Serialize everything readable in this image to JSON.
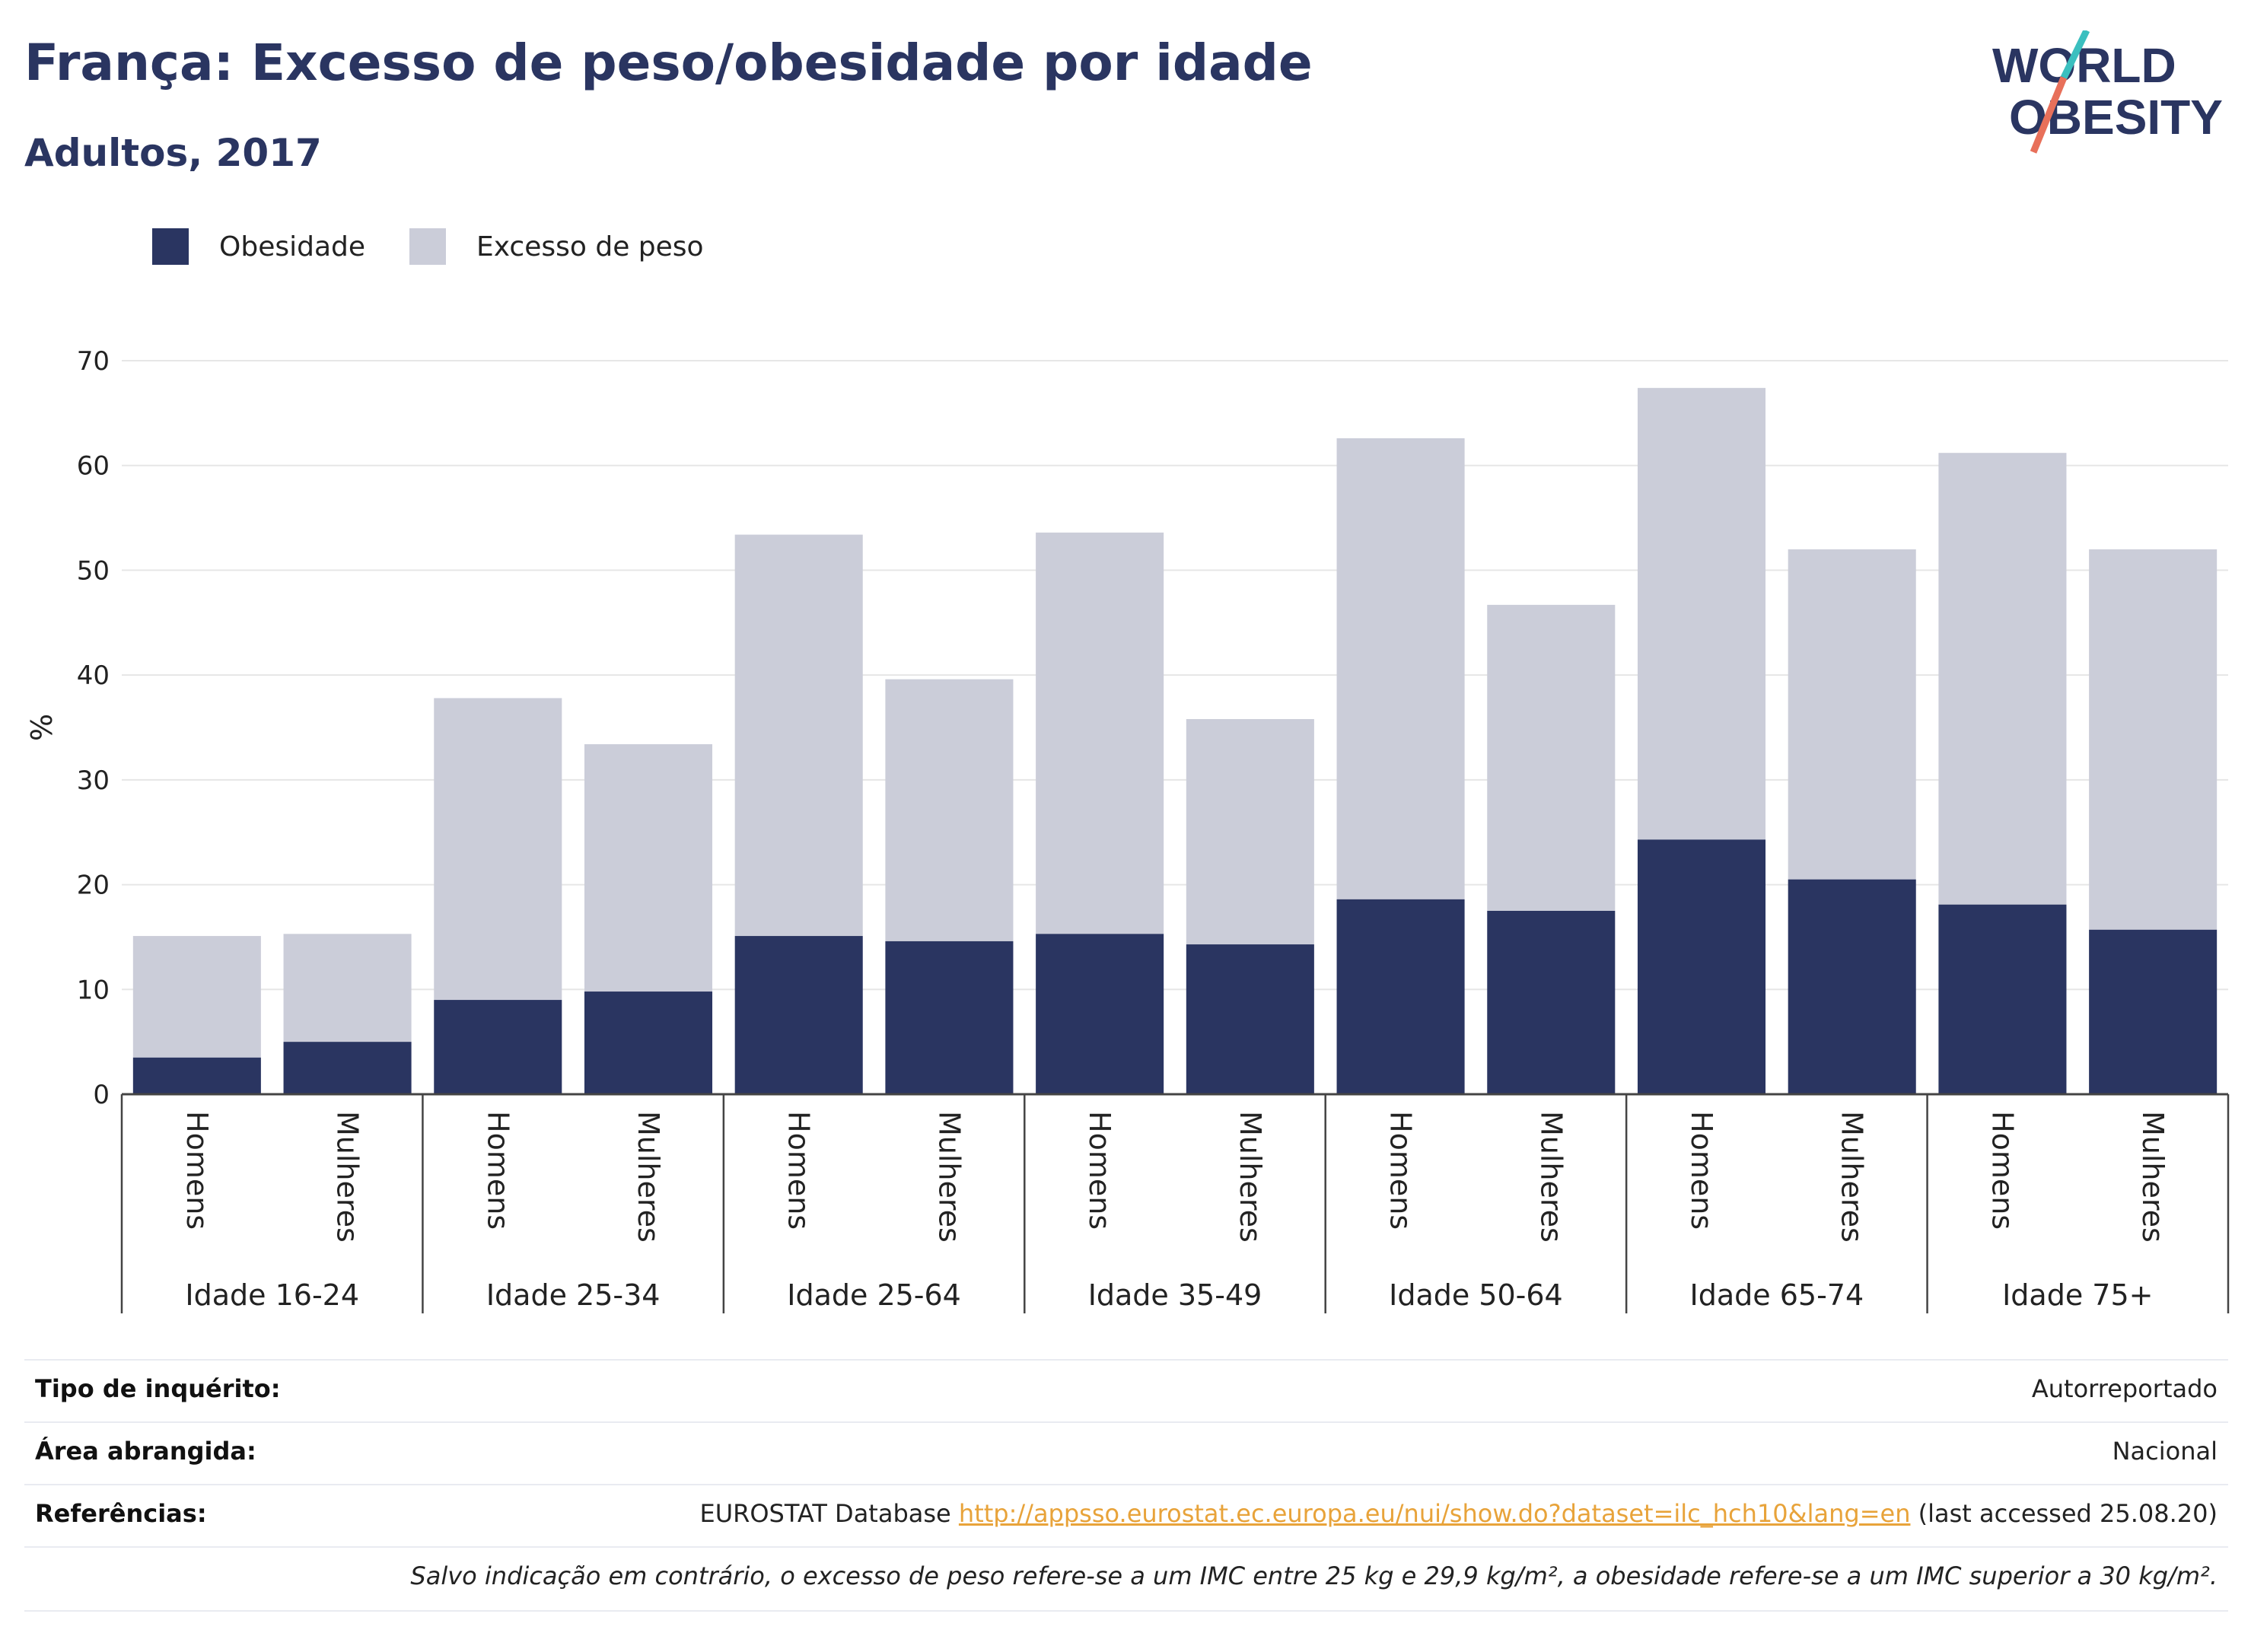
{
  "header": {
    "title": "França: Excesso de peso/obesidade por idade",
    "subtitle": "Adultos, 2017"
  },
  "logo": {
    "line1": "WORLD",
    "line2": "OBESITY"
  },
  "colors": {
    "obesity": "#2a3561",
    "overweight": "#cbcdd9",
    "accent": "#2a3561",
    "link": "#e8a33a"
  },
  "legend": {
    "obesity_label": "Obesidade",
    "overweight_label": "Excesso de peso"
  },
  "chart_data": {
    "type": "bar",
    "stacked": true,
    "ylabel": "%",
    "ylim": [
      0,
      70
    ],
    "yticks": [
      0,
      10,
      20,
      30,
      40,
      50,
      60,
      70
    ],
    "grid": true,
    "legend_position": "top-left",
    "groups": [
      "Idade 16-24",
      "Idade 25-34",
      "Idade 25-64",
      "Idade 35-49",
      "Idade 50-64",
      "Idade 65-74",
      "Idade 75+"
    ],
    "subcategories": [
      "Homens",
      "Mulheres"
    ],
    "series": [
      {
        "name": "Obesidade",
        "values": [
          3.5,
          5.0,
          9.0,
          9.8,
          15.1,
          14.6,
          15.3,
          14.3,
          18.6,
          17.5,
          24.3,
          20.5,
          18.1,
          15.7
        ]
      },
      {
        "name": "Excesso de peso",
        "values": [
          11.6,
          10.3,
          28.8,
          23.6,
          38.3,
          25.0,
          38.3,
          21.5,
          44.0,
          29.2,
          43.1,
          31.5,
          43.1,
          36.3
        ]
      }
    ]
  },
  "info": {
    "survey_type_label": "Tipo de inquérito:",
    "survey_type_value": "Autorreportado",
    "area_label": "Área abrangida:",
    "area_value": "Nacional",
    "references_label": "Referências:",
    "references_prefix": "EUROSTAT Database",
    "references_link": "http://appsso.eurostat.ec.europa.eu/nui/show.do?dataset=ilc_hch10&lang=en",
    "references_suffix": "(last accessed 25.08.20)",
    "note": "Salvo indicação em contrário, o excesso de peso refere-se a um IMC entre 25 kg e 29,9 kg/m², a obesidade refere-se a um IMC superior a 30 kg/m²."
  }
}
